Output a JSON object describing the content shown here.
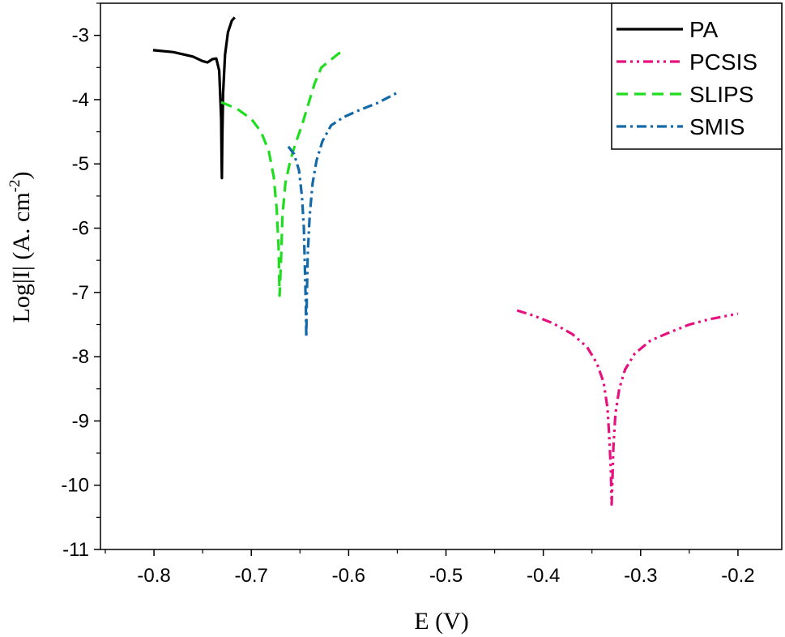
{
  "chart_data": {
    "type": "line",
    "xlabel": "E (V)",
    "ylabel": {
      "main": "Log|I| (A. cm",
      "sup": "-2",
      "end": ")"
    },
    "xlim": [
      -0.855,
      -0.155
    ],
    "ylim": [
      -11,
      -2.5
    ],
    "xticks": [
      -0.8,
      -0.7,
      -0.6,
      -0.5,
      -0.4,
      -0.3,
      -0.2
    ],
    "xtick_labels": [
      "-0.8",
      "-0.7",
      "-0.6",
      "-0.5",
      "-0.4",
      "-0.3",
      "-0.2"
    ],
    "yticks": [
      -11,
      -10,
      -9,
      -8,
      -7,
      -6,
      -5,
      -4,
      -3
    ],
    "ytick_labels": [
      "-11",
      "-10",
      "-9",
      "-8",
      "-7",
      "-6",
      "-5",
      "-4",
      "-3"
    ],
    "grid": false,
    "legend_position": "top-right",
    "series": [
      {
        "name": "PA",
        "color": "#000000",
        "dash": "solid",
        "points": [
          [
            -0.801,
            -3.23
          ],
          [
            -0.78,
            -3.26
          ],
          [
            -0.76,
            -3.33
          ],
          [
            -0.75,
            -3.4
          ],
          [
            -0.745,
            -3.42
          ],
          [
            -0.74,
            -3.37
          ],
          [
            -0.736,
            -3.36
          ],
          [
            -0.733,
            -3.55
          ],
          [
            -0.731,
            -4.3
          ],
          [
            -0.7305,
            -5.0
          ],
          [
            -0.7302,
            -5.22
          ],
          [
            -0.7298,
            -4.6
          ],
          [
            -0.729,
            -3.9
          ],
          [
            -0.727,
            -3.3
          ],
          [
            -0.724,
            -2.95
          ],
          [
            -0.72,
            -2.77
          ],
          [
            -0.717,
            -2.72
          ]
        ]
      },
      {
        "name": "PCSIS",
        "color": "#e6107f",
        "dash": "dashdotdot",
        "points": [
          [
            -0.427,
            -7.28
          ],
          [
            -0.41,
            -7.36
          ],
          [
            -0.39,
            -7.48
          ],
          [
            -0.37,
            -7.65
          ],
          [
            -0.355,
            -7.85
          ],
          [
            -0.345,
            -8.1
          ],
          [
            -0.338,
            -8.4
          ],
          [
            -0.334,
            -8.8
          ],
          [
            -0.332,
            -9.3
          ],
          [
            -0.3305,
            -9.8
          ],
          [
            -0.3298,
            -10.3
          ],
          [
            -0.329,
            -9.9
          ],
          [
            -0.328,
            -9.4
          ],
          [
            -0.326,
            -8.9
          ],
          [
            -0.322,
            -8.5
          ],
          [
            -0.316,
            -8.2
          ],
          [
            -0.306,
            -7.95
          ],
          [
            -0.29,
            -7.75
          ],
          [
            -0.27,
            -7.62
          ],
          [
            -0.25,
            -7.5
          ],
          [
            -0.23,
            -7.42
          ],
          [
            -0.2,
            -7.33
          ]
        ]
      },
      {
        "name": "SLIPS",
        "color": "#1fdd1f",
        "dash": "dashed",
        "points": [
          [
            -0.731,
            -4.04
          ],
          [
            -0.715,
            -4.14
          ],
          [
            -0.7,
            -4.3
          ],
          [
            -0.69,
            -4.5
          ],
          [
            -0.682,
            -4.8
          ],
          [
            -0.677,
            -5.2
          ],
          [
            -0.674,
            -5.7
          ],
          [
            -0.672,
            -6.3
          ],
          [
            -0.671,
            -7.05
          ],
          [
            -0.6695,
            -6.5
          ],
          [
            -0.668,
            -5.8
          ],
          [
            -0.665,
            -5.3
          ],
          [
            -0.66,
            -4.95
          ],
          [
            -0.655,
            -4.7
          ],
          [
            -0.648,
            -4.4
          ],
          [
            -0.642,
            -4.1
          ],
          [
            -0.635,
            -3.75
          ],
          [
            -0.628,
            -3.5
          ],
          [
            -0.62,
            -3.4
          ],
          [
            -0.61,
            -3.28
          ],
          [
            -0.606,
            -3.26
          ]
        ]
      },
      {
        "name": "SMIS",
        "color": "#1469a8",
        "dash": "dashdot",
        "points": [
          [
            -0.662,
            -4.73
          ],
          [
            -0.656,
            -4.85
          ],
          [
            -0.651,
            -5.1
          ],
          [
            -0.648,
            -5.5
          ],
          [
            -0.646,
            -6.0
          ],
          [
            -0.645,
            -6.6
          ],
          [
            -0.644,
            -7.2
          ],
          [
            -0.6435,
            -7.7
          ],
          [
            -0.643,
            -7.1
          ],
          [
            -0.642,
            -6.4
          ],
          [
            -0.64,
            -5.8
          ],
          [
            -0.637,
            -5.3
          ],
          [
            -0.633,
            -4.95
          ],
          [
            -0.627,
            -4.65
          ],
          [
            -0.618,
            -4.4
          ],
          [
            -0.605,
            -4.27
          ],
          [
            -0.59,
            -4.17
          ],
          [
            -0.57,
            -4.05
          ],
          [
            -0.551,
            -3.9
          ]
        ]
      }
    ]
  }
}
